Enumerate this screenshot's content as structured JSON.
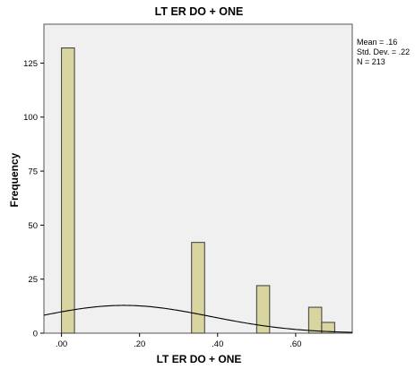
{
  "chart_data": {
    "type": "bar",
    "title": "LT ER DO + ONE",
    "xlabel": "LT ER DO + ONE",
    "ylabel": "Frequency",
    "bins": [
      {
        "x_start": 0.0,
        "x_end": 0.0333,
        "value": 132
      },
      {
        "x_start": 0.3333,
        "x_end": 0.3667,
        "value": 42
      },
      {
        "x_start": 0.5,
        "x_end": 0.5333,
        "value": 22
      },
      {
        "x_start": 0.6333,
        "x_end": 0.6667,
        "value": 12
      },
      {
        "x_start": 0.6667,
        "x_end": 0.7,
        "value": 5
      }
    ],
    "xlim": [
      -0.045,
      0.745
    ],
    "ylim": [
      0,
      143
    ],
    "xticks": [
      {
        "value": 0.0,
        "label": ".00"
      },
      {
        "value": 0.2,
        "label": ".20"
      },
      {
        "value": 0.4,
        "label": ".40"
      },
      {
        "value": 0.6,
        "label": ".60"
      }
    ],
    "yticks": [
      {
        "value": 0,
        "label": "0"
      },
      {
        "value": 25,
        "label": "25"
      },
      {
        "value": 50,
        "label": "50"
      },
      {
        "value": 75,
        "label": "75"
      },
      {
        "value": 100,
        "label": "100"
      },
      {
        "value": 125,
        "label": "125"
      }
    ],
    "normal_curve": {
      "mean": 0.16,
      "std_dev": 0.22,
      "n": 213,
      "bin_width": 0.0333
    },
    "stats": {
      "mean_label": "Mean = .16",
      "std_label": "Std. Dev. = .22",
      "n_label": "N = 213"
    },
    "grid": false,
    "colors": {
      "bar_fill": "#d8d5a0",
      "bar_stroke": "#3a3a3a",
      "plot_background": "#f0f0f0",
      "curve": "#000000"
    }
  }
}
